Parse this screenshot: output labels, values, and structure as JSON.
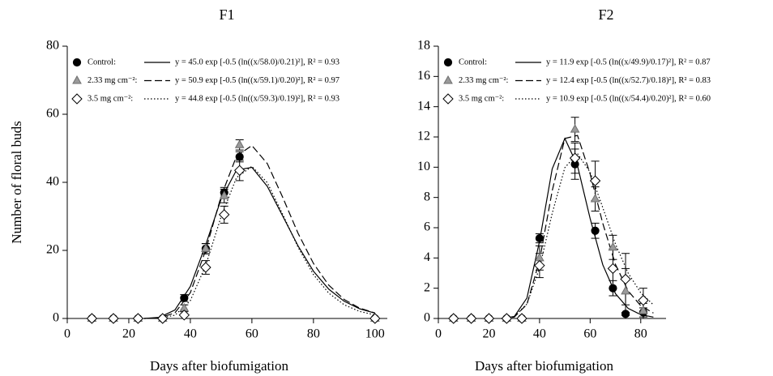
{
  "chart_data": [
    {
      "type": "scatter",
      "title": "F1",
      "xlabel": "Days after biofumigation",
      "ylabel": "Number of floral buds",
      "xlim": [
        0,
        104
      ],
      "ylim": [
        0,
        80
      ],
      "xticks": [
        0,
        20,
        40,
        60,
        80,
        100
      ],
      "yticks": [
        0,
        20,
        40,
        60,
        80
      ],
      "series": [
        {
          "name": "Control:",
          "marker": "circle",
          "fill": "#000000",
          "stroke": "#000000",
          "line_style": "solid",
          "fit_label": "y = 45.0 exp [-0.5 (ln((x/58.0)/0.21)²],  R² = 0.93",
          "x": [
            8,
            15,
            23,
            31,
            38,
            45,
            51,
            56,
            100
          ],
          "values": [
            0,
            0,
            0,
            0,
            6,
            20.5,
            37,
            47.5,
            0
          ],
          "errors": [
            0,
            0,
            0,
            0,
            1,
            1.5,
            1.5,
            1.5,
            0
          ],
          "fit_x": [
            25,
            30,
            35,
            40,
            45,
            50,
            55,
            60,
            65,
            70,
            75,
            80,
            85,
            90,
            95,
            100
          ],
          "fit_values": [
            0.01,
            0.33,
            2.49,
            9.4,
            21.7,
            35.1,
            43.6,
            44.4,
            38.8,
            30.1,
            21.3,
            13.9,
            8.59,
            5.04,
            2.85,
            1.56
          ]
        },
        {
          "name": "2.33 mg cm⁻²:",
          "marker": "triangle",
          "fill": "#9a9a9a",
          "stroke": "#6e6e6e",
          "line_style": "dashed",
          "fit_label": "y = 50.9 exp [-0.5 (ln((x/59.1)/0.20)²],  R² = 0.97",
          "x": [
            8,
            15,
            23,
            31,
            38,
            45,
            51,
            56,
            100
          ],
          "values": [
            0,
            0,
            0,
            0,
            3,
            20.5,
            36,
            51,
            0
          ],
          "errors": [
            0,
            0,
            0,
            0,
            1,
            1.5,
            2,
            1.5,
            0
          ],
          "fit_x": [
            25,
            30,
            35,
            40,
            45,
            50,
            55,
            60,
            65,
            70,
            75,
            80,
            85,
            90,
            95,
            100
          ],
          "fit_values": [
            0.01,
            0.16,
            1.65,
            7.57,
            20.1,
            35.9,
            47.7,
            50.8,
            45.5,
            35.6,
            25,
            16.2,
            9.77,
            5.58,
            3.05,
            1.61
          ]
        },
        {
          "name": "3.5 mg cm⁻²:",
          "marker": "diamond",
          "fill": "#ffffff",
          "stroke": "#000000",
          "line_style": "dotted",
          "fit_label": "y = 44.8 exp [-0.5 (ln((x/59.3)/0.19)²],  R² = 0.93",
          "x": [
            8,
            15,
            23,
            31,
            38,
            45,
            51,
            56,
            100
          ],
          "values": [
            0,
            0,
            0,
            0,
            1,
            15,
            30.5,
            43.5,
            0
          ],
          "errors": [
            0,
            0,
            0,
            0,
            1,
            2,
            2.5,
            3,
            0
          ],
          "fit_x": [
            25,
            30,
            35,
            40,
            45,
            50,
            55,
            60,
            65,
            70,
            75,
            80,
            85,
            90,
            95,
            100
          ],
          "fit_values": [
            0,
            0.07,
            0.95,
            5.24,
            15.6,
            29.9,
            41.4,
            44.7,
            39.9,
            30.6,
            20.9,
            12.9,
            7.44,
            4.02,
            2.07,
            1.02
          ]
        }
      ]
    },
    {
      "type": "scatter",
      "title": "F2",
      "xlabel": "Days after biofumigation",
      "xlim": [
        0,
        90
      ],
      "ylim": [
        0,
        18
      ],
      "xticks": [
        0,
        20,
        40,
        60,
        80
      ],
      "yticks": [
        0,
        2,
        4,
        6,
        8,
        10,
        12,
        14,
        16,
        18
      ],
      "series": [
        {
          "name": "Control:",
          "marker": "circle",
          "fill": "#000000",
          "stroke": "#000000",
          "line_style": "solid",
          "fit_label": "y = 11.9 exp [-0.5 (ln((x/49.9)/0.17)²],  R² = 0.87",
          "x": [
            6,
            13,
            20,
            27,
            33,
            40,
            54,
            62,
            69,
            74,
            81
          ],
          "values": [
            0,
            0,
            0,
            0,
            0,
            5.3,
            10.2,
            5.8,
            2,
            0.3,
            0.4
          ],
          "errors": [
            0,
            0,
            0,
            0,
            0,
            0.3,
            1,
            0.5,
            0.5,
            0.1,
            0.3
          ],
          "fit_x": [
            25,
            30,
            35,
            40,
            45,
            50,
            55,
            60,
            65,
            70,
            75,
            80,
            85
          ],
          "fit_values": [
            0,
            0.13,
            1.35,
            5.11,
            9.89,
            11.9,
            10.1,
            6.61,
            3.55,
            1.64,
            0.67,
            0.25,
            0.09
          ]
        },
        {
          "name": "2.33 mg cm⁻²:",
          "marker": "triangle",
          "fill": "#9a9a9a",
          "stroke": "#6e6e6e",
          "line_style": "dashed",
          "fit_label": "y = 12.4 exp [-0.5 (ln((x/52.7)/0.18)²],  R² = 0.83",
          "x": [
            6,
            13,
            20,
            27,
            33,
            40,
            54,
            62,
            69,
            74,
            81
          ],
          "values": [
            0,
            0,
            0,
            0,
            0,
            4,
            12.5,
            7.9,
            4.7,
            1.8,
            0.5
          ],
          "errors": [
            0,
            0,
            0,
            0,
            0,
            0.8,
            0.8,
            0.8,
            0.8,
            1.5,
            0.5
          ],
          "fit_x": [
            25,
            30,
            35,
            40,
            45,
            50,
            55,
            60,
            65,
            70,
            75,
            80,
            85
          ],
          "fit_values": [
            0,
            0.09,
            0.93,
            3.84,
            8.44,
            11.9,
            12.1,
            9.56,
            6.29,
            3.57,
            1.82,
            0.84,
            0.36
          ]
        },
        {
          "name": "3.5 mg cm⁻²:",
          "marker": "diamond",
          "fill": "#ffffff",
          "stroke": "#000000",
          "line_style": "dotted",
          "fit_label": "y = 10.9 exp [-0.5 (ln((x/54.4)/0.20)²],  R² = 0.60",
          "x": [
            6,
            13,
            20,
            27,
            33,
            40,
            54,
            62,
            69,
            74,
            81
          ],
          "values": [
            0,
            0,
            0,
            0,
            0,
            3.5,
            10.6,
            9.1,
            3.3,
            2.6,
            1.2
          ],
          "errors": [
            0,
            0,
            0,
            0,
            0,
            0.8,
            1,
            1.3,
            1.3,
            1.7,
            0.8
          ],
          "fit_x": [
            25,
            30,
            35,
            40,
            45,
            50,
            55,
            60,
            65,
            70,
            75,
            80,
            85
          ],
          "fit_values": [
            0.01,
            0.13,
            0.96,
            3.34,
            6.95,
            9.97,
            10.9,
            9.67,
            7.33,
            4.92,
            3,
            1.7,
            0.9
          ]
        }
      ]
    }
  ]
}
